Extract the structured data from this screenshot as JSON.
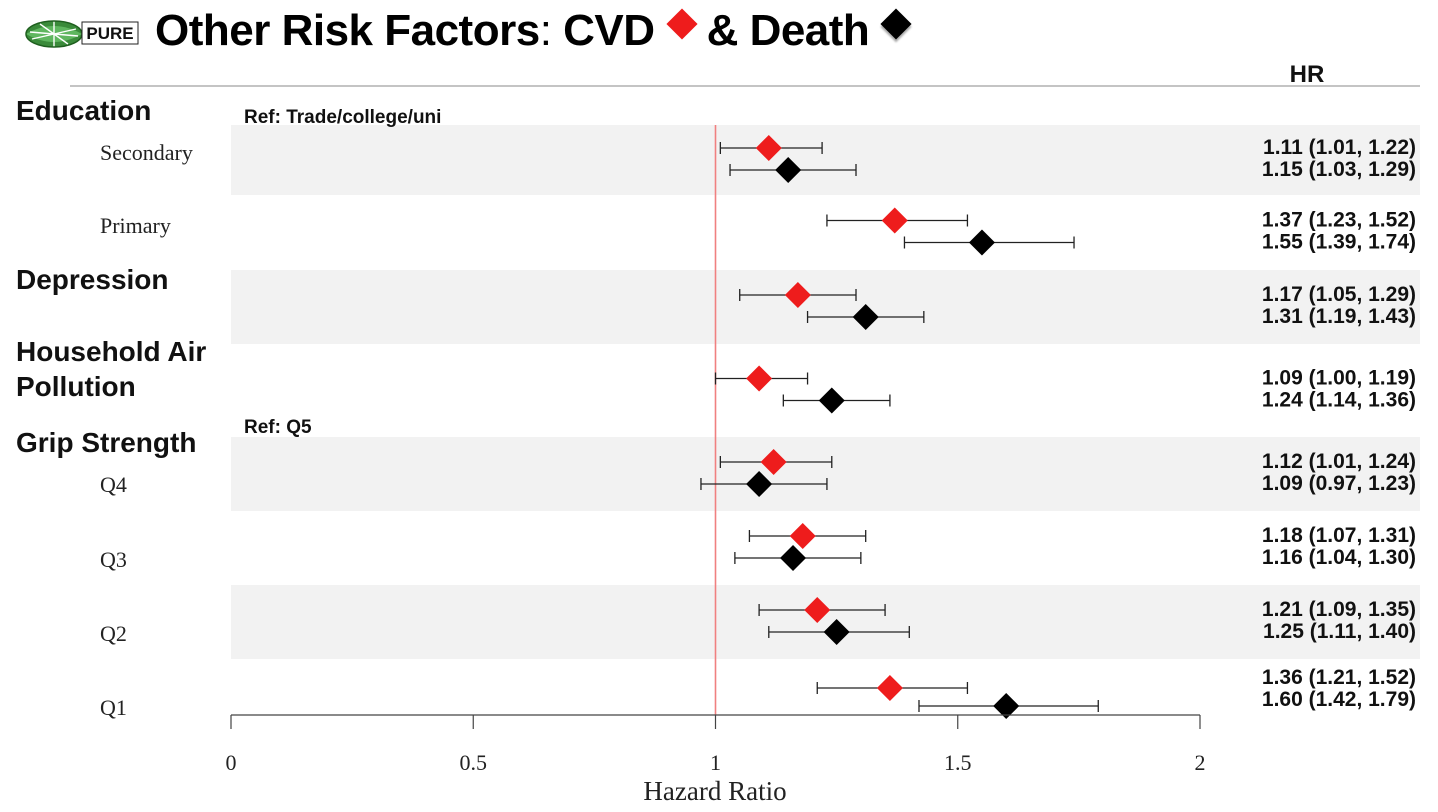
{
  "header": {
    "logo_text": "PURE",
    "title_main": "Other Risk Factors",
    "title_colon": ":",
    "title_cvd": "CVD",
    "title_and_death": "& Death"
  },
  "chart_data": {
    "type": "forest",
    "xlabel": "Hazard Ratio",
    "xlim": [
      0,
      2
    ],
    "xticks": [
      0,
      0.5,
      1,
      1.5,
      2
    ],
    "xtick_labels": [
      "0",
      "0.5",
      "1",
      "1.5",
      "2"
    ],
    "reference_line": 1,
    "hr_column_header": "HR",
    "legend": [
      {
        "name": "CVD",
        "color": "#ee1c1c",
        "marker": "diamond"
      },
      {
        "name": "Death",
        "color": "#000000",
        "marker": "diamond"
      }
    ],
    "groups": [
      {
        "label": "Education",
        "ref": "Ref: Trade/college/uni",
        "rows": [
          {
            "label": "Secondary",
            "cvd": [
              1.11,
              1.01,
              1.22
            ],
            "death": [
              1.15,
              1.03,
              1.29
            ],
            "cvd_text": "1.11 (1.01, 1.22)",
            "death_text": "1.15 (1.03, 1.29)"
          },
          {
            "label": "Primary",
            "cvd": [
              1.37,
              1.23,
              1.52
            ],
            "death": [
              1.55,
              1.39,
              1.74
            ],
            "cvd_text": "1.37 (1.23, 1.52)",
            "death_text": "1.55 (1.39, 1.74)"
          }
        ]
      },
      {
        "label": "Depression",
        "ref": "",
        "rows": [
          {
            "label": "",
            "cvd": [
              1.17,
              1.05,
              1.29
            ],
            "death": [
              1.31,
              1.19,
              1.43
            ],
            "cvd_text": "1.17 (1.05, 1.29)",
            "death_text": "1.31 (1.19, 1.43)"
          }
        ]
      },
      {
        "label": "Household Air Pollution",
        "label_lines": [
          "Household Air",
          "Pollution"
        ],
        "ref": "",
        "rows": [
          {
            "label": "",
            "cvd": [
              1.09,
              1.0,
              1.19
            ],
            "death": [
              1.24,
              1.14,
              1.36
            ],
            "cvd_text": "1.09 (1.00, 1.19)",
            "death_text": "1.24 (1.14, 1.36)"
          }
        ]
      },
      {
        "label": "Grip Strength",
        "ref": "Ref: Q5",
        "rows": [
          {
            "label": "Q4",
            "cvd": [
              1.12,
              1.01,
              1.24
            ],
            "death": [
              1.09,
              0.97,
              1.23
            ],
            "cvd_text": "1.12 (1.01, 1.24)",
            "death_text": "1.09 (0.97, 1.23)"
          },
          {
            "label": "Q3",
            "cvd": [
              1.18,
              1.07,
              1.31
            ],
            "death": [
              1.16,
              1.04,
              1.3
            ],
            "cvd_text": "1.18 (1.07, 1.31)",
            "death_text": "1.16 (1.04, 1.30)"
          },
          {
            "label": "Q2",
            "cvd": [
              1.21,
              1.09,
              1.35
            ],
            "death": [
              1.25,
              1.11,
              1.4
            ],
            "cvd_text": "1.21 (1.09, 1.35)",
            "death_text": "1.25 (1.11, 1.40)"
          },
          {
            "label": "Q1",
            "cvd": [
              1.36,
              1.21,
              1.52
            ],
            "death": [
              1.6,
              1.42,
              1.79
            ],
            "cvd_text": "1.36 (1.21, 1.52)",
            "death_text": "1.60 (1.42, 1.79)"
          }
        ]
      }
    ]
  }
}
